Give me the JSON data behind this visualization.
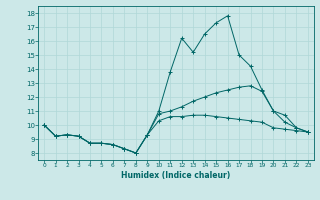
{
  "xlabel": "Humidex (Indice chaleur)",
  "ylabel": "",
  "bg_color": "#cce8e8",
  "grid_color": "#b0d8d8",
  "line_color": "#006666",
  "xlim": [
    -0.5,
    23.5
  ],
  "ylim": [
    7.5,
    18.5
  ],
  "yticks": [
    8,
    9,
    10,
    11,
    12,
    13,
    14,
    15,
    16,
    17,
    18
  ],
  "xticks": [
    0,
    1,
    2,
    3,
    4,
    5,
    6,
    7,
    8,
    9,
    10,
    11,
    12,
    13,
    14,
    15,
    16,
    17,
    18,
    19,
    20,
    21,
    22,
    23
  ],
  "series": [
    {
      "x": [
        0,
        1,
        2,
        3,
        4,
        5,
        6,
        7,
        8,
        9,
        10,
        11,
        12,
        13,
        14,
        15,
        16,
        17,
        18,
        19,
        20,
        21,
        22,
        23
      ],
      "y": [
        10.0,
        9.2,
        9.3,
        9.2,
        8.7,
        8.7,
        8.6,
        8.3,
        8.0,
        9.3,
        10.3,
        10.6,
        10.6,
        10.7,
        10.7,
        10.6,
        10.5,
        10.4,
        10.3,
        10.2,
        9.8,
        9.7,
        9.6,
        9.5
      ]
    },
    {
      "x": [
        0,
        1,
        2,
        3,
        4,
        5,
        6,
        7,
        8,
        9,
        10,
        11,
        12,
        13,
        14,
        15,
        16,
        17,
        18,
        19,
        20,
        21,
        22,
        23
      ],
      "y": [
        10.0,
        9.2,
        9.3,
        9.2,
        8.7,
        8.7,
        8.6,
        8.3,
        8.0,
        9.3,
        11.0,
        13.8,
        16.2,
        15.2,
        16.5,
        17.3,
        17.8,
        15.0,
        14.2,
        12.5,
        11.0,
        10.2,
        9.8,
        9.5
      ]
    },
    {
      "x": [
        0,
        1,
        2,
        3,
        4,
        5,
        6,
        7,
        8,
        9,
        10,
        11,
        12,
        13,
        14,
        15,
        16,
        17,
        18,
        19,
        20,
        21,
        22,
        23
      ],
      "y": [
        10.0,
        9.2,
        9.3,
        9.2,
        8.7,
        8.7,
        8.6,
        8.3,
        8.0,
        9.3,
        10.8,
        11.0,
        11.3,
        11.7,
        12.0,
        12.3,
        12.5,
        12.7,
        12.8,
        12.4,
        11.0,
        10.7,
        9.8,
        9.5
      ]
    }
  ]
}
